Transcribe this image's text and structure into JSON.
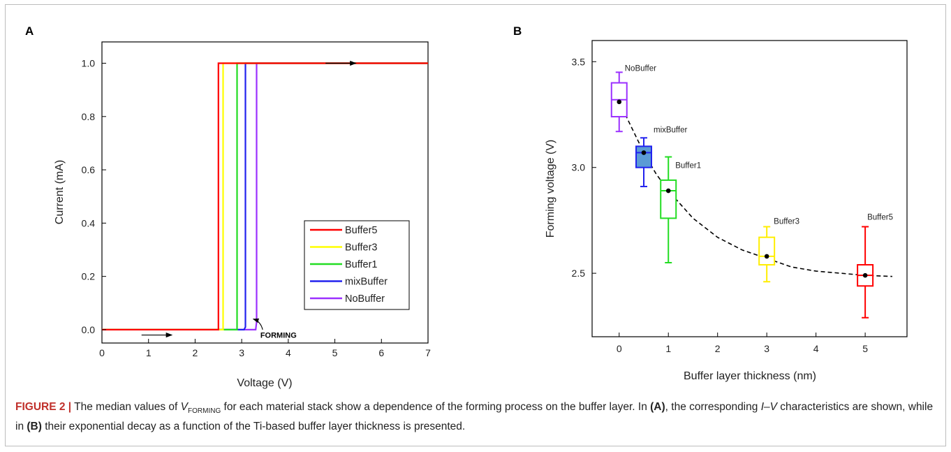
{
  "chart_data": [
    {
      "panel": "A",
      "type": "line",
      "xlabel": "Voltage (V)",
      "ylabel": "Current (mA)",
      "xlim": [
        0,
        7
      ],
      "ylim": [
        -0.05,
        1.08
      ],
      "xticks": [
        "0",
        "1",
        "2",
        "3",
        "4",
        "5",
        "6",
        "7"
      ],
      "yticks": [
        "0.0",
        "0.2",
        "0.4",
        "0.6",
        "0.8",
        "1.0"
      ],
      "grid": false,
      "legend_position": "bottom-right",
      "series": [
        {
          "name": "Buffer5",
          "color": "#ff0000",
          "x": [
            0,
            2.5,
            2.5,
            7
          ],
          "y": [
            0,
            0,
            1.0,
            1.0
          ]
        },
        {
          "name": "Buffer3",
          "color": "#ffff00",
          "x": [
            0,
            2.6,
            2.6,
            7
          ],
          "y": [
            0,
            0,
            1.0,
            1.0
          ]
        },
        {
          "name": "Buffer1",
          "color": "#22dd22",
          "x": [
            0,
            2.9,
            2.9,
            7
          ],
          "y": [
            0,
            0,
            1.0,
            1.0
          ]
        },
        {
          "name": "mixBuffer",
          "color": "#2222ee",
          "x": [
            0,
            3.05,
            3.08,
            3.08,
            7
          ],
          "y": [
            0,
            0,
            0.01,
            1.0,
            1.0
          ]
        },
        {
          "name": "NoBuffer",
          "color": "#9b30ff",
          "x": [
            0,
            3.3,
            3.32,
            3.32,
            7
          ],
          "y": [
            0,
            0,
            0.03,
            1.0,
            1.0
          ]
        }
      ],
      "annotations": [
        {
          "text": "FORMING",
          "x": 3.4,
          "y": -0.03
        }
      ],
      "arrows": [
        {
          "x": [
            0.85,
            1.5
          ],
          "y": [
            -0.02,
            -0.02
          ]
        },
        {
          "x": [
            4.8,
            5.45
          ],
          "y": [
            1.0,
            1.0
          ]
        },
        {
          "x": [
            3.45,
            3.25
          ],
          "y": [
            0.0,
            0.04
          ]
        }
      ]
    },
    {
      "panel": "B",
      "type": "box",
      "xlabel": "Buffer layer thickness (nm)",
      "ylabel": "Forming voltage (V)",
      "xlim": [
        -0.55,
        5.85
      ],
      "ylim": [
        2.2,
        3.6
      ],
      "xticks": [
        "0",
        "1",
        "2",
        "3",
        "4",
        "5"
      ],
      "yticks": [
        "2.5",
        "3.0",
        "3.5"
      ],
      "grid": false,
      "boxes": [
        {
          "name": "NoBuffer",
          "x": 0,
          "min": 3.17,
          "q1": 3.24,
          "median": 3.32,
          "q3": 3.4,
          "max": 3.45,
          "mean": 3.31,
          "color": "#9b30ff",
          "fill": "none"
        },
        {
          "name": "mixBuffer",
          "x": 0.5,
          "min": 2.91,
          "q1": 3.0,
          "median": 3.07,
          "q3": 3.1,
          "max": 3.14,
          "mean": 3.07,
          "color": "#2222ee",
          "fill": "#5b9bd5"
        },
        {
          "name": "Buffer1",
          "x": 1,
          "min": 2.55,
          "q1": 2.76,
          "median": 2.89,
          "q3": 2.94,
          "max": 3.05,
          "mean": 2.89,
          "color": "#22dd22",
          "fill": "none"
        },
        {
          "name": "Buffer3",
          "x": 3,
          "min": 2.46,
          "q1": 2.54,
          "median": 2.58,
          "q3": 2.67,
          "max": 2.72,
          "mean": 2.58,
          "color": "#ffee00",
          "fill": "none"
        },
        {
          "name": "Buffer5",
          "x": 5,
          "min": 2.29,
          "q1": 2.44,
          "median": 2.49,
          "q3": 2.54,
          "max": 2.72,
          "mean": 2.49,
          "color": "#ff0000",
          "fill": "none"
        }
      ],
      "fit_curve": {
        "style": "dashed",
        "x": [
          0,
          0.25,
          0.5,
          0.75,
          1,
          1.5,
          2,
          2.5,
          3,
          3.5,
          4,
          4.5,
          5,
          5.55
        ],
        "y": [
          3.31,
          3.19,
          3.07,
          2.97,
          2.89,
          2.76,
          2.67,
          2.61,
          2.57,
          2.53,
          2.51,
          2.5,
          2.49,
          2.485
        ]
      }
    }
  ],
  "caption": {
    "figure_label": "FIGURE 2 |",
    "part1": " The median values of ",
    "v_symbol": "V",
    "v_subscript": "FORMING",
    "part2": " for each material stack show a dependence of the forming process on the buffer layer. In ",
    "ref_a": "(A)",
    "part3": ", the corresponding ",
    "iv_italic": "I–V",
    "part4": " characteristics are shown, while in ",
    "ref_b": "(B)",
    "part5": " their exponential decay as a function of the Ti-based buffer layer thickness is presented."
  }
}
